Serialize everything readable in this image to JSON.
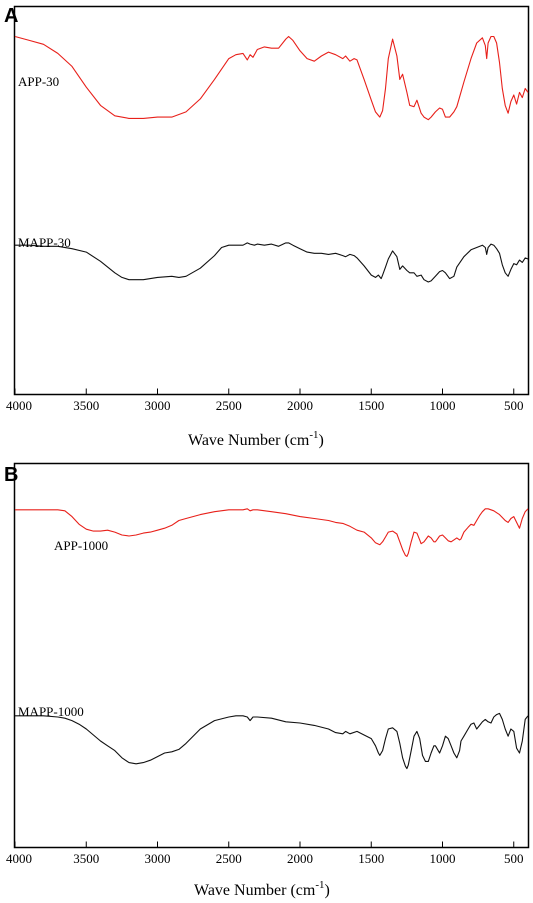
{
  "colors": {
    "red_series": "#e8201a",
    "black_series": "#111111"
  },
  "chart_data": [
    {
      "type": "line",
      "panel_label": "A",
      "xlabel_main": "Wave Number (cm",
      "xlabel_sup": "-1",
      "xlabel_close": ")",
      "xlim": [
        4000,
        400
      ],
      "x_reversed": true,
      "x_ticks": [
        "4000",
        "3500",
        "3000",
        "2500",
        "2000",
        "1500",
        "1000",
        "500"
      ],
      "x_tick_values": [
        4000,
        3500,
        3000,
        2500,
        2000,
        1500,
        1000,
        500
      ],
      "ylim": [
        0,
        1
      ],
      "series": [
        {
          "name": "APP-30",
          "color": "#e8201a",
          "x": [
            4000,
            3900,
            3800,
            3700,
            3600,
            3500,
            3400,
            3300,
            3200,
            3100,
            3000,
            2900,
            2800,
            2700,
            2600,
            2500,
            2450,
            2400,
            2370,
            2350,
            2330,
            2300,
            2250,
            2200,
            2150,
            2100,
            2080,
            2050,
            2000,
            1950,
            1900,
            1850,
            1800,
            1750,
            1700,
            1680,
            1650,
            1620,
            1600,
            1550,
            1500,
            1470,
            1440,
            1420,
            1400,
            1380,
            1350,
            1320,
            1300,
            1280,
            1250,
            1230,
            1200,
            1180,
            1150,
            1130,
            1100,
            1080,
            1050,
            1020,
            1000,
            980,
            950,
            920,
            900,
            850,
            800,
            760,
            720,
            700,
            690,
            680,
            660,
            640,
            620,
            600,
            580,
            560,
            540,
            520,
            500,
            480,
            460,
            440,
            420,
            400
          ],
          "y": [
            0.95,
            0.92,
            0.89,
            0.82,
            0.72,
            0.56,
            0.42,
            0.34,
            0.32,
            0.32,
            0.33,
            0.33,
            0.37,
            0.47,
            0.62,
            0.78,
            0.81,
            0.82,
            0.77,
            0.81,
            0.79,
            0.85,
            0.87,
            0.86,
            0.86,
            0.93,
            0.95,
            0.92,
            0.84,
            0.78,
            0.76,
            0.8,
            0.83,
            0.81,
            0.78,
            0.8,
            0.76,
            0.78,
            0.77,
            0.62,
            0.46,
            0.37,
            0.33,
            0.38,
            0.55,
            0.78,
            0.93,
            0.8,
            0.62,
            0.66,
            0.52,
            0.42,
            0.41,
            0.46,
            0.36,
            0.33,
            0.31,
            0.33,
            0.37,
            0.4,
            0.39,
            0.33,
            0.33,
            0.37,
            0.41,
            0.6,
            0.78,
            0.9,
            0.94,
            0.88,
            0.78,
            0.9,
            0.95,
            0.95,
            0.9,
            0.75,
            0.55,
            0.42,
            0.36,
            0.45,
            0.5,
            0.43,
            0.52,
            0.48,
            0.55,
            0.52
          ]
        },
        {
          "name": "MAPP-30",
          "color": "#111111",
          "x": [
            4000,
            3900,
            3800,
            3700,
            3600,
            3500,
            3400,
            3300,
            3250,
            3200,
            3100,
            3000,
            2900,
            2850,
            2800,
            2700,
            2600,
            2550,
            2500,
            2450,
            2400,
            2370,
            2350,
            2320,
            2300,
            2250,
            2200,
            2150,
            2100,
            2080,
            2050,
            2000,
            1950,
            1900,
            1850,
            1800,
            1750,
            1700,
            1680,
            1650,
            1620,
            1600,
            1550,
            1500,
            1470,
            1450,
            1430,
            1420,
            1400,
            1380,
            1350,
            1320,
            1300,
            1280,
            1250,
            1230,
            1200,
            1180,
            1150,
            1130,
            1100,
            1080,
            1050,
            1020,
            1000,
            980,
            950,
            920,
            900,
            850,
            800,
            760,
            720,
            700,
            690,
            680,
            660,
            640,
            620,
            600,
            580,
            560,
            540,
            520,
            500,
            480,
            460,
            440,
            420,
            400
          ],
          "y": [
            0.52,
            0.52,
            0.51,
            0.51,
            0.49,
            0.46,
            0.38,
            0.28,
            0.24,
            0.22,
            0.22,
            0.24,
            0.25,
            0.24,
            0.25,
            0.32,
            0.43,
            0.5,
            0.52,
            0.52,
            0.52,
            0.54,
            0.53,
            0.52,
            0.53,
            0.52,
            0.53,
            0.51,
            0.54,
            0.54,
            0.52,
            0.49,
            0.46,
            0.45,
            0.45,
            0.44,
            0.45,
            0.43,
            0.42,
            0.44,
            0.43,
            0.41,
            0.34,
            0.26,
            0.24,
            0.26,
            0.23,
            0.26,
            0.33,
            0.4,
            0.47,
            0.42,
            0.31,
            0.34,
            0.3,
            0.28,
            0.28,
            0.25,
            0.26,
            0.22,
            0.2,
            0.21,
            0.25,
            0.29,
            0.3,
            0.28,
            0.23,
            0.25,
            0.33,
            0.42,
            0.48,
            0.5,
            0.52,
            0.5,
            0.44,
            0.5,
            0.53,
            0.52,
            0.49,
            0.45,
            0.35,
            0.28,
            0.25,
            0.31,
            0.36,
            0.35,
            0.39,
            0.37,
            0.41,
            0.4
          ]
        }
      ]
    },
    {
      "type": "line",
      "panel_label": "B",
      "xlabel_main": "Wave Number (cm",
      "xlabel_sup": "-1",
      "xlabel_close": ")",
      "xlim": [
        4000,
        400
      ],
      "x_reversed": true,
      "x_ticks": [
        "4000",
        "3500",
        "3000",
        "2500",
        "2000",
        "1500",
        "1000",
        "500"
      ],
      "x_tick_values": [
        4000,
        3500,
        3000,
        2500,
        2000,
        1500,
        1000,
        500
      ],
      "ylim": [
        0,
        1
      ],
      "series": [
        {
          "name": "APP-1000",
          "color": "#e8201a",
          "x": [
            4000,
            3900,
            3800,
            3700,
            3650,
            3600,
            3550,
            3500,
            3450,
            3400,
            3350,
            3300,
            3250,
            3200,
            3150,
            3100,
            3050,
            3000,
            2950,
            2900,
            2850,
            2800,
            2700,
            2600,
            2500,
            2400,
            2370,
            2350,
            2330,
            2300,
            2200,
            2100,
            2000,
            1900,
            1800,
            1750,
            1700,
            1650,
            1600,
            1550,
            1500,
            1470,
            1440,
            1420,
            1400,
            1380,
            1350,
            1320,
            1300,
            1280,
            1260,
            1250,
            1240,
            1220,
            1200,
            1180,
            1160,
            1150,
            1130,
            1100,
            1080,
            1060,
            1050,
            1040,
            1020,
            1000,
            980,
            960,
            940,
            920,
            900,
            880,
            870,
            850,
            820,
            800,
            780,
            760,
            740,
            720,
            700,
            680,
            660,
            640,
            620,
            600,
            580,
            560,
            540,
            520,
            500,
            480,
            460,
            440,
            420,
            400
          ],
          "y": [
            0.93,
            0.93,
            0.93,
            0.93,
            0.92,
            0.86,
            0.78,
            0.73,
            0.71,
            0.71,
            0.72,
            0.7,
            0.67,
            0.66,
            0.67,
            0.69,
            0.7,
            0.72,
            0.74,
            0.77,
            0.82,
            0.84,
            0.88,
            0.91,
            0.93,
            0.93,
            0.94,
            0.92,
            0.93,
            0.93,
            0.91,
            0.89,
            0.86,
            0.84,
            0.82,
            0.8,
            0.79,
            0.76,
            0.72,
            0.7,
            0.64,
            0.59,
            0.57,
            0.6,
            0.65,
            0.7,
            0.71,
            0.68,
            0.6,
            0.52,
            0.46,
            0.45,
            0.48,
            0.6,
            0.7,
            0.69,
            0.62,
            0.58,
            0.6,
            0.66,
            0.64,
            0.6,
            0.6,
            0.62,
            0.66,
            0.67,
            0.64,
            0.61,
            0.6,
            0.62,
            0.64,
            0.62,
            0.63,
            0.7,
            0.75,
            0.78,
            0.77,
            0.82,
            0.87,
            0.91,
            0.94,
            0.94,
            0.93,
            0.92,
            0.9,
            0.88,
            0.85,
            0.82,
            0.8,
            0.84,
            0.86,
            0.8,
            0.74,
            0.84,
            0.91,
            0.94
          ]
        },
        {
          "name": "MAPP-1000",
          "color": "#111111",
          "x": [
            4000,
            3900,
            3800,
            3700,
            3650,
            3600,
            3550,
            3500,
            3450,
            3400,
            3350,
            3300,
            3250,
            3200,
            3150,
            3100,
            3050,
            3000,
            2950,
            2900,
            2850,
            2800,
            2700,
            2600,
            2500,
            2450,
            2400,
            2370,
            2350,
            2330,
            2300,
            2200,
            2100,
            2000,
            1900,
            1800,
            1750,
            1700,
            1680,
            1650,
            1600,
            1550,
            1500,
            1470,
            1450,
            1440,
            1420,
            1400,
            1380,
            1350,
            1320,
            1300,
            1280,
            1260,
            1250,
            1240,
            1220,
            1200,
            1180,
            1160,
            1140,
            1120,
            1100,
            1080,
            1060,
            1050,
            1040,
            1020,
            1000,
            980,
            960,
            940,
            920,
            900,
            880,
            870,
            850,
            820,
            800,
            780,
            760,
            740,
            720,
            700,
            680,
            660,
            640,
            620,
            600,
            580,
            560,
            540,
            520,
            500,
            480,
            460,
            440,
            420,
            400
          ],
          "y": [
            0.41,
            0.41,
            0.41,
            0.4,
            0.39,
            0.37,
            0.34,
            0.3,
            0.25,
            0.2,
            0.16,
            0.12,
            0.06,
            0.02,
            0.01,
            0.02,
            0.04,
            0.07,
            0.1,
            0.11,
            0.13,
            0.18,
            0.3,
            0.37,
            0.4,
            0.41,
            0.41,
            0.4,
            0.37,
            0.4,
            0.4,
            0.39,
            0.36,
            0.35,
            0.33,
            0.3,
            0.27,
            0.26,
            0.28,
            0.26,
            0.28,
            0.25,
            0.22,
            0.16,
            0.1,
            0.08,
            0.12,
            0.22,
            0.3,
            0.31,
            0.28,
            0.18,
            0.06,
            -0.01,
            -0.03,
            0.0,
            0.12,
            0.24,
            0.28,
            0.22,
            0.08,
            0.03,
            0.03,
            0.1,
            0.16,
            0.16,
            0.14,
            0.1,
            0.16,
            0.24,
            0.22,
            0.16,
            0.1,
            0.06,
            0.12,
            0.2,
            0.24,
            0.3,
            0.34,
            0.35,
            0.3,
            0.33,
            0.36,
            0.38,
            0.36,
            0.35,
            0.4,
            0.42,
            0.43,
            0.38,
            0.3,
            0.24,
            0.3,
            0.28,
            0.14,
            0.1,
            0.2,
            0.38,
            0.41
          ]
        }
      ]
    }
  ]
}
